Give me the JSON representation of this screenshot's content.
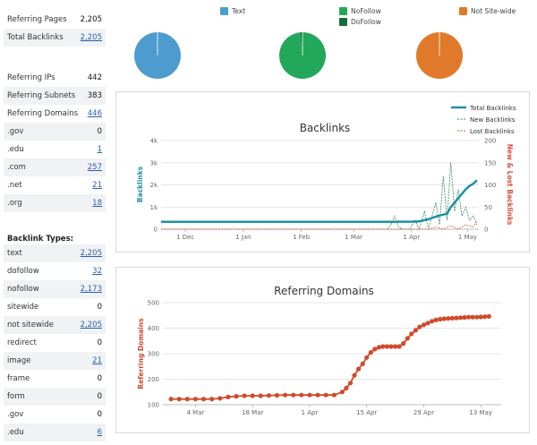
{
  "summary": [
    {
      "label": "Referring Pages",
      "value": "2,205",
      "link": false
    },
    {
      "label": "Total Backlinks",
      "value": "2,205",
      "link": true
    }
  ],
  "referring": [
    {
      "label": "Referring IPs",
      "value": "442",
      "link": false
    },
    {
      "label": "Referring Subnets",
      "value": "383",
      "link": false
    },
    {
      "label": "Referring Domains",
      "value": "446",
      "link": true
    },
    {
      "label": ".gov",
      "value": "0",
      "link": false
    },
    {
      "label": ".edu",
      "value": "1",
      "link": true
    },
    {
      "label": ".com",
      "value": "257",
      "link": true
    },
    {
      "label": ".net",
      "value": "21",
      "link": true
    },
    {
      "label": ".org",
      "value": "18",
      "link": true
    }
  ],
  "backlink_types_title": "Backlink Types:",
  "backlink_types": [
    {
      "label": "text",
      "value": "2,205",
      "link": true
    },
    {
      "label": "dofollow",
      "value": "32",
      "link": true
    },
    {
      "label": "nofollow",
      "value": "2,173",
      "link": true
    },
    {
      "label": "sitewide",
      "value": "0",
      "link": false
    },
    {
      "label": "not sitewide",
      "value": "2,205",
      "link": true
    },
    {
      "label": "redirect",
      "value": "0",
      "link": false
    },
    {
      "label": "image",
      "value": "21",
      "link": true
    },
    {
      "label": "frame",
      "value": "0",
      "link": false
    },
    {
      "label": "form",
      "value": "0",
      "link": false
    },
    {
      "label": ".gov",
      "value": "0",
      "link": false
    },
    {
      "label": ".edu",
      "value": "6",
      "link": true
    }
  ],
  "pie_legend": [
    {
      "label": "Text",
      "color": "#4e9ccf"
    },
    {
      "label": "NoFollow",
      "color": "#22a85a"
    },
    {
      "label": "DoFollow",
      "color": "#176b3a"
    },
    {
      "label": "Not Site-wide",
      "color": "#e07a2a"
    }
  ],
  "chart_data": [
    {
      "type": "pie",
      "name": "Text",
      "slices": [
        {
          "label": "Text",
          "value": 2205,
          "color": "#4e9ccf"
        }
      ]
    },
    {
      "type": "pie",
      "name": "Follow",
      "slices": [
        {
          "label": "NoFollow",
          "value": 2173,
          "color": "#22a85a"
        },
        {
          "label": "DoFollow",
          "value": 32,
          "color": "#176b3a"
        }
      ]
    },
    {
      "type": "pie",
      "name": "Site-wide",
      "slices": [
        {
          "label": "Not Site-wide",
          "value": 2205,
          "color": "#e07a2a"
        }
      ]
    },
    {
      "type": "line",
      "title": "Backlinks",
      "ylabel": "Backlinks",
      "y2label": "New & Lost Backlinks",
      "ylim": [
        0,
        4000
      ],
      "y2lim": [
        0,
        200
      ],
      "yticks": [
        "0",
        "1k",
        "2k",
        "3k",
        "4k"
      ],
      "y2ticks": [
        "0",
        "50",
        "100",
        "150",
        "200"
      ],
      "xticks": [
        "1 Dec",
        "1 Jan",
        "1 Feb",
        "1 Mar",
        "1 Apr",
        "1 May"
      ],
      "xtick_days": [
        -120,
        -89,
        -58,
        -30,
        1,
        31
      ],
      "x_range": [
        -133,
        37
      ],
      "series": [
        {
          "name": "Total Backlinks",
          "color": "#1f8fa7",
          "axis": "left",
          "points": [
            [
              -133,
              330
            ],
            [
              -60,
              330
            ],
            [
              -10,
              330
            ],
            [
              -5,
              340
            ],
            [
              0,
              340
            ],
            [
              5,
              350
            ],
            [
              10,
              450
            ],
            [
              15,
              600
            ],
            [
              20,
              700
            ],
            [
              22,
              1000
            ],
            [
              25,
              1300
            ],
            [
              28,
              1600
            ],
            [
              30,
              1800
            ],
            [
              32,
              1950
            ],
            [
              34,
              2050
            ],
            [
              36,
              2205
            ]
          ]
        },
        {
          "name": "New Backlinks",
          "color": "#2e8b57",
          "axis": "right",
          "dashed": true,
          "points": [
            [
              -133,
              0
            ],
            [
              -12,
              0
            ],
            [
              -10,
              10
            ],
            [
              -8,
              30
            ],
            [
              -6,
              5
            ],
            [
              -4,
              0
            ],
            [
              0,
              0
            ],
            [
              3,
              20
            ],
            [
              5,
              0
            ],
            [
              8,
              40
            ],
            [
              10,
              0
            ],
            [
              14,
              60
            ],
            [
              16,
              10
            ],
            [
              18,
              120
            ],
            [
              20,
              20
            ],
            [
              22,
              150
            ],
            [
              24,
              40
            ],
            [
              26,
              90
            ],
            [
              28,
              30
            ],
            [
              30,
              50
            ],
            [
              32,
              20
            ],
            [
              34,
              30
            ],
            [
              36,
              10
            ]
          ]
        },
        {
          "name": "Lost Backlinks",
          "color": "#d94f3a",
          "axis": "right",
          "dashed": true,
          "points": [
            [
              -133,
              0
            ],
            [
              10,
              0
            ],
            [
              14,
              5
            ],
            [
              18,
              0
            ],
            [
              22,
              8
            ],
            [
              26,
              0
            ],
            [
              30,
              10
            ],
            [
              34,
              5
            ],
            [
              36,
              20
            ]
          ]
        }
      ]
    },
    {
      "type": "line",
      "title": "Referring Domains",
      "ylabel": "Referring Domains",
      "ylim": [
        100,
        500
      ],
      "yticks": [
        "100",
        "200",
        "300",
        "400",
        "500"
      ],
      "xticks": [
        "4 Mar",
        "18 Mar",
        "1 Apr",
        "15 Apr",
        "29 Apr",
        "13 May"
      ],
      "xtick_days": [
        4,
        18,
        32,
        46,
        60,
        74
      ],
      "x_range": [
        -4,
        79
      ],
      "series": [
        {
          "name": "Referring Domains",
          "color": "#d04a2c",
          "points": [
            [
              -2,
              122
            ],
            [
              0,
              122
            ],
            [
              2,
              122
            ],
            [
              4,
              122
            ],
            [
              6,
              122
            ],
            [
              8,
              122
            ],
            [
              10,
              125
            ],
            [
              12,
              130
            ],
            [
              14,
              133
            ],
            [
              16,
              135
            ],
            [
              18,
              135
            ],
            [
              20,
              135
            ],
            [
              22,
              136
            ],
            [
              24,
              137
            ],
            [
              26,
              138
            ],
            [
              28,
              138
            ],
            [
              30,
              138
            ],
            [
              32,
              138
            ],
            [
              34,
              138
            ],
            [
              36,
              138
            ],
            [
              38,
              138
            ],
            [
              40,
              150
            ],
            [
              41,
              165
            ],
            [
              42,
              185
            ],
            [
              43,
              215
            ],
            [
              44,
              240
            ],
            [
              45,
              260
            ],
            [
              46,
              285
            ],
            [
              47,
              305
            ],
            [
              48,
              318
            ],
            [
              49,
              325
            ],
            [
              50,
              328
            ],
            [
              51,
              328
            ],
            [
              52,
              328
            ],
            [
              53,
              328
            ],
            [
              54,
              328
            ],
            [
              55,
              340
            ],
            [
              56,
              360
            ],
            [
              57,
              378
            ],
            [
              58,
              392
            ],
            [
              59,
              405
            ],
            [
              60,
              413
            ],
            [
              61,
              420
            ],
            [
              62,
              427
            ],
            [
              63,
              432
            ],
            [
              64,
              435
            ],
            [
              65,
              437
            ],
            [
              66,
              438
            ],
            [
              67,
              439
            ],
            [
              68,
              440
            ],
            [
              69,
              441
            ],
            [
              70,
              442
            ],
            [
              71,
              443
            ],
            [
              72,
              443
            ],
            [
              73,
              443
            ],
            [
              74,
              444
            ],
            [
              75,
              445
            ],
            [
              76,
              446
            ]
          ]
        }
      ]
    }
  ]
}
